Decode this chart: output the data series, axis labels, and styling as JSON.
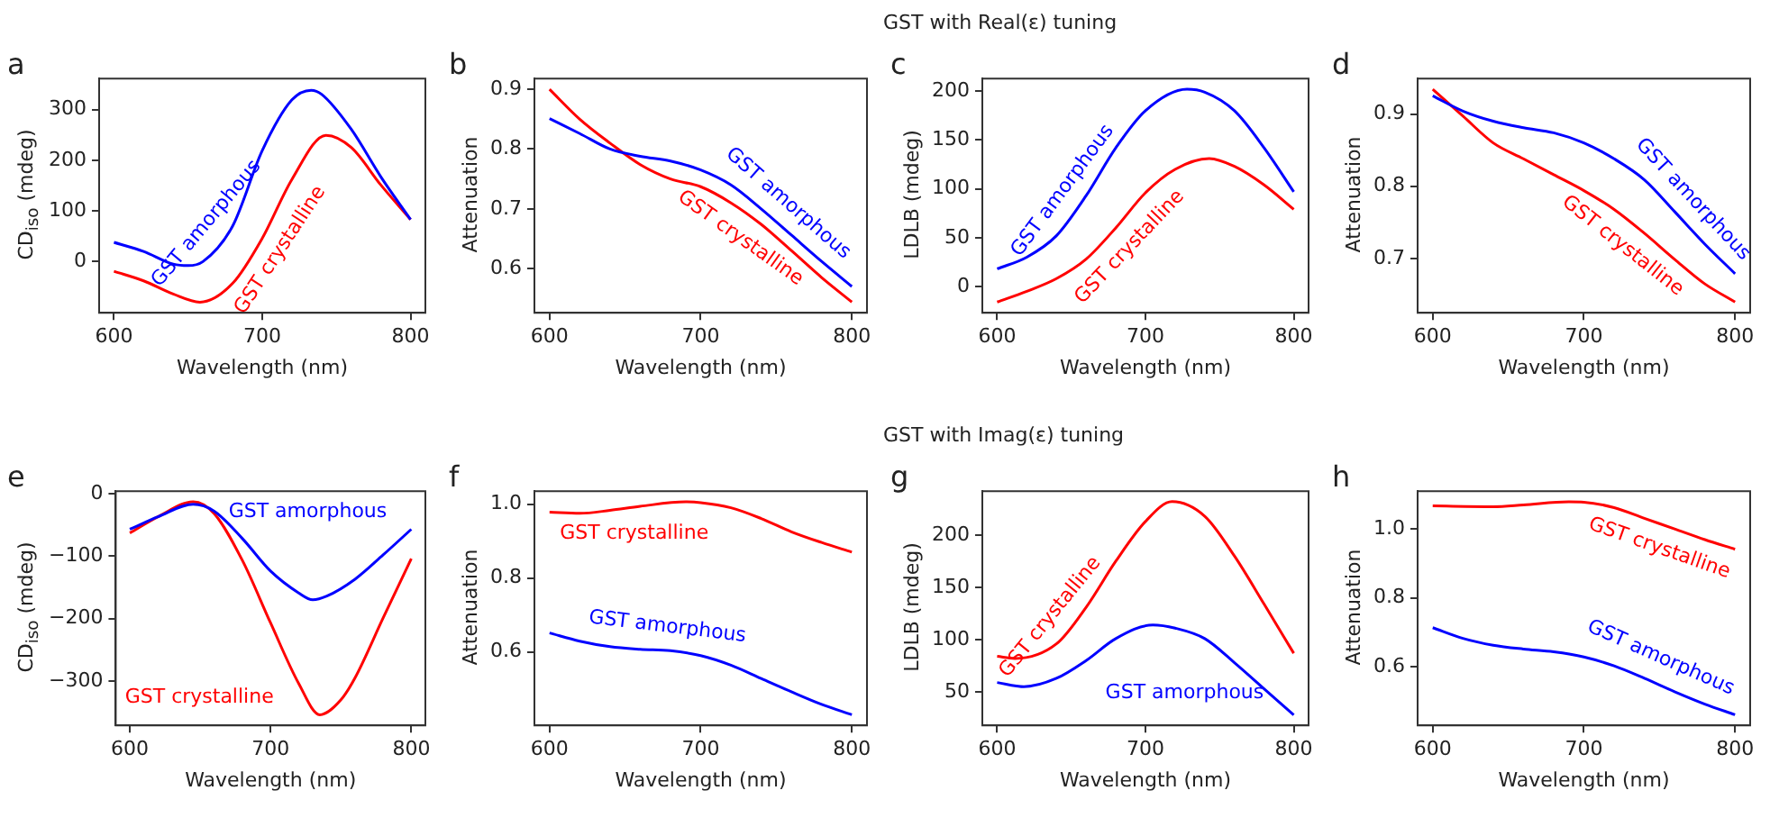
{
  "chart_data": [
    {
      "type": "line",
      "annotations": [
        "a"
      ],
      "xlabel": "Wavelength (nm)",
      "ylabel": "CD$_{iso}$ (mdeg)",
      "xlim": [
        590,
        810
      ],
      "xticks": [
        600,
        700,
        800
      ],
      "ylim": [
        -101,
        361
      ],
      "yticks": [
        0,
        100,
        200,
        300
      ],
      "series": [
        {
          "name": "GST amorphous",
          "color": "#0000ff",
          "x": [
            600,
            620,
            640,
            650,
            660,
            680,
            700,
            720,
            733,
            740,
            760,
            780,
            800
          ],
          "values": [
            38,
            20,
            -5,
            -8,
            0,
            70,
            219,
            319,
            338,
            330,
            261,
            167,
            83
          ]
        },
        {
          "name": "GST crystalline",
          "color": "#ff0000",
          "x": [
            600,
            620,
            640,
            658,
            680,
            700,
            720,
            743,
            760,
            780,
            800
          ],
          "values": [
            -19,
            -38,
            -64,
            -80,
            -43,
            46,
            162,
            249,
            225,
            151,
            83
          ]
        }
      ]
    },
    {
      "type": "line",
      "annotations": [
        "b"
      ],
      "xlabel": "Wavelength (nm)",
      "ylabel": "Attenuation",
      "xlim": [
        590,
        810
      ],
      "xticks": [
        600,
        700,
        800
      ],
      "ylim": [
        0.526,
        0.918
      ],
      "yticks": [
        0.6,
        0.7,
        0.8,
        0.9
      ],
      "series": [
        {
          "name": "GST amorphous",
          "color": "#0000ff",
          "x": [
            600,
            620,
            640,
            660,
            680,
            700,
            720,
            740,
            760,
            780,
            800
          ],
          "values": [
            0.851,
            0.826,
            0.8,
            0.788,
            0.78,
            0.765,
            0.74,
            0.7,
            0.656,
            0.612,
            0.57
          ]
        },
        {
          "name": "GST crystalline",
          "color": "#ff0000",
          "x": [
            600,
            620,
            640,
            660,
            680,
            700,
            720,
            740,
            760,
            780,
            800
          ],
          "values": [
            0.9,
            0.85,
            0.81,
            0.774,
            0.75,
            0.737,
            0.71,
            0.674,
            0.63,
            0.585,
            0.544
          ]
        }
      ]
    },
    {
      "type": "line",
      "title": "GST with Real(ε) tuning",
      "annotations": [
        "c"
      ],
      "xlabel": "Wavelength (nm)",
      "ylabel": "LDLB (mdeg)",
      "xlim": [
        590,
        810
      ],
      "xticks": [
        600,
        700,
        800
      ],
      "ylim": [
        -27,
        213
      ],
      "yticks": [
        0,
        50,
        100,
        150,
        200
      ],
      "series": [
        {
          "name": "GST amorphous",
          "color": "#0000ff",
          "x": [
            600,
            620,
            640,
            660,
            680,
            700,
            728,
            740,
            760,
            780,
            800
          ],
          "values": [
            18,
            30,
            52,
            93,
            142,
            180,
            202,
            199,
            180,
            142,
            97
          ]
        },
        {
          "name": "GST crystalline",
          "color": "#ff0000",
          "x": [
            600,
            620,
            640,
            660,
            680,
            700,
            720,
            743,
            760,
            780,
            800
          ],
          "values": [
            -16,
            -5,
            8,
            28,
            60,
            96,
            120,
            131,
            123,
            104,
            79
          ]
        }
      ]
    },
    {
      "type": "line",
      "annotations": [
        "d"
      ],
      "xlabel": "Wavelength (nm)",
      "ylabel": "Attenuation",
      "xlim": [
        590,
        810
      ],
      "xticks": [
        600,
        700,
        800
      ],
      "ylim": [
        0.625,
        0.949
      ],
      "yticks": [
        0.7,
        0.8,
        0.9
      ],
      "series": [
        {
          "name": "GST amorphous",
          "color": "#0000ff",
          "x": [
            600,
            620,
            640,
            660,
            680,
            700,
            720,
            740,
            760,
            780,
            800
          ],
          "values": [
            0.925,
            0.904,
            0.89,
            0.881,
            0.874,
            0.86,
            0.838,
            0.809,
            0.765,
            0.72,
            0.679
          ]
        },
        {
          "name": "GST crystalline",
          "color": "#ff0000",
          "x": [
            600,
            620,
            640,
            660,
            680,
            700,
            720,
            740,
            760,
            780,
            800
          ],
          "values": [
            0.934,
            0.897,
            0.86,
            0.838,
            0.816,
            0.794,
            0.768,
            0.735,
            0.699,
            0.665,
            0.64
          ]
        }
      ]
    },
    {
      "type": "line",
      "annotations": [
        "e"
      ],
      "xlabel": "Wavelength (nm)",
      "ylabel": "CD$_{iso}$ (mdeg)",
      "xlim": [
        590,
        810
      ],
      "xticks": [
        600,
        700,
        800
      ],
      "ylim": [
        -371,
        4
      ],
      "yticks": [
        {
          "value": -300,
          "label": "−300"
        },
        {
          "value": -200,
          "label": "−200"
        },
        {
          "value": -100,
          "label": "−100"
        },
        0
      ],
      "series": [
        {
          "name": "GST amorphous",
          "color": "#0000ff",
          "x": [
            600,
            620,
            645,
            660,
            680,
            700,
            720,
            730,
            740,
            760,
            780,
            800
          ],
          "values": [
            -57,
            -37,
            -17,
            -28,
            -72,
            -124,
            -159,
            -170,
            -164,
            -137,
            -98,
            -57
          ]
        },
        {
          "name": "GST crystalline",
          "color": "#ff0000",
          "x": [
            600,
            620,
            645,
            660,
            680,
            700,
            720,
            735,
            750,
            760,
            780,
            800
          ],
          "values": [
            -63,
            -37,
            -13,
            -32,
            -107,
            -207,
            -304,
            -354,
            -330,
            -295,
            -199,
            -104
          ]
        }
      ]
    },
    {
      "type": "line",
      "annotations": [
        "f"
      ],
      "xlabel": "Wavelength (nm)",
      "ylabel": "Attenuation",
      "xlim": [
        590,
        810
      ],
      "xticks": [
        600,
        700,
        800
      ],
      "ylim": [
        0.401,
        1.035
      ],
      "yticks": [
        0.6,
        0.8,
        {
          "value": 1,
          "label": "1.0"
        }
      ],
      "series": [
        {
          "name": "GST amorphous",
          "color": "#0000ff",
          "x": [
            600,
            620,
            640,
            660,
            680,
            700,
            720,
            740,
            760,
            780,
            800
          ],
          "values": [
            0.651,
            0.629,
            0.614,
            0.607,
            0.603,
            0.59,
            0.564,
            0.528,
            0.492,
            0.458,
            0.43
          ]
        },
        {
          "name": "GST crystalline",
          "color": "#ff0000",
          "x": [
            600,
            620,
            640,
            660,
            690,
            700,
            720,
            740,
            760,
            780,
            800
          ],
          "values": [
            0.978,
            0.975,
            0.983,
            0.994,
            1.006,
            1.004,
            0.99,
            0.961,
            0.925,
            0.896,
            0.87
          ]
        }
      ]
    },
    {
      "type": "line",
      "title": "GST with Imag(ε) tuning",
      "annotations": [
        "g"
      ],
      "xlabel": "Wavelength (nm)",
      "ylabel": "LDLB (mdeg)",
      "xlim": [
        590,
        810
      ],
      "xticks": [
        600,
        700,
        800
      ],
      "ylim": [
        18,
        242
      ],
      "yticks": [
        50,
        100,
        150,
        200
      ],
      "series": [
        {
          "name": "GST amorphous",
          "color": "#0000ff",
          "x": [
            600,
            618,
            640,
            660,
            680,
            705,
            720,
            740,
            760,
            780,
            800
          ],
          "values": [
            59,
            55,
            63,
            80,
            101,
            114,
            111,
            101,
            78,
            53,
            28
          ]
        },
        {
          "name": "GST crystalline",
          "color": "#ff0000",
          "x": [
            600,
            612,
            640,
            660,
            680,
            700,
            718,
            740,
            760,
            780,
            800
          ],
          "values": [
            84,
            82,
            96,
            131,
            175,
            213,
            232,
            218,
            180,
            134,
            87
          ]
        }
      ]
    },
    {
      "type": "line",
      "annotations": [
        "h"
      ],
      "xlabel": "Wavelength (nm)",
      "ylabel": "Attenuation",
      "xlim": [
        590,
        810
      ],
      "xticks": [
        600,
        700,
        800
      ],
      "ylim": [
        0.429,
        1.11
      ],
      "yticks": [
        0.6,
        0.8,
        {
          "value": 1,
          "label": "1.0"
        }
      ],
      "series": [
        {
          "name": "GST amorphous",
          "color": "#0000ff",
          "x": [
            600,
            620,
            640,
            660,
            680,
            700,
            720,
            740,
            760,
            780,
            800
          ],
          "values": [
            0.713,
            0.682,
            0.662,
            0.651,
            0.643,
            0.628,
            0.602,
            0.566,
            0.527,
            0.491,
            0.46
          ]
        },
        {
          "name": "GST crystalline",
          "color": "#ff0000",
          "x": [
            600,
            640,
            660,
            690,
            700,
            720,
            740,
            760,
            780,
            800
          ],
          "values": [
            1.067,
            1.065,
            1.07,
            1.079,
            1.078,
            1.062,
            1.031,
            1,
            0.969,
            0.941
          ]
        }
      ]
    }
  ]
}
